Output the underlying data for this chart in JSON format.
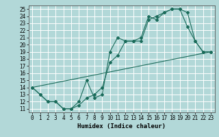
{
  "xlabel": "Humidex (Indice chaleur)",
  "background_color": "#b2d8d8",
  "grid_color": "#ffffff",
  "line_color": "#1a6b5a",
  "xlim": [
    -0.5,
    23.5
  ],
  "ylim": [
    10.5,
    25.5
  ],
  "xticks": [
    0,
    1,
    2,
    3,
    4,
    5,
    6,
    7,
    8,
    9,
    10,
    11,
    12,
    13,
    14,
    15,
    16,
    17,
    18,
    19,
    20,
    21,
    22,
    23
  ],
  "yticks": [
    11,
    12,
    13,
    14,
    15,
    16,
    17,
    18,
    19,
    20,
    21,
    22,
    23,
    24,
    25
  ],
  "line1_x": [
    0,
    1,
    2,
    3,
    4,
    5,
    6,
    7,
    8,
    9,
    10,
    11,
    12,
    13,
    14,
    15,
    16,
    17,
    18,
    19,
    20,
    21,
    22,
    23
  ],
  "line1_y": [
    14,
    13,
    12,
    12,
    11,
    11,
    12,
    15,
    12.5,
    13,
    19,
    21,
    20.5,
    20.5,
    21,
    24,
    23.5,
    24.5,
    25,
    25,
    22.5,
    20.5,
    19,
    19
  ],
  "line2_x": [
    0,
    1,
    2,
    3,
    4,
    5,
    6,
    7,
    8,
    9,
    10,
    11,
    12,
    13,
    14,
    15,
    16,
    17,
    18,
    19,
    20,
    21,
    22,
    23
  ],
  "line2_y": [
    14,
    13,
    12,
    12,
    11,
    11,
    11.5,
    12.5,
    13,
    14,
    17.5,
    18.5,
    20.5,
    20.5,
    20.5,
    23.5,
    24,
    24.5,
    25,
    25,
    24.5,
    20.5,
    19,
    19
  ],
  "line3_x": [
    0,
    23
  ],
  "line3_y": [
    14,
    19
  ],
  "tick_fontsize": 5.5,
  "xlabel_fontsize": 6.5
}
